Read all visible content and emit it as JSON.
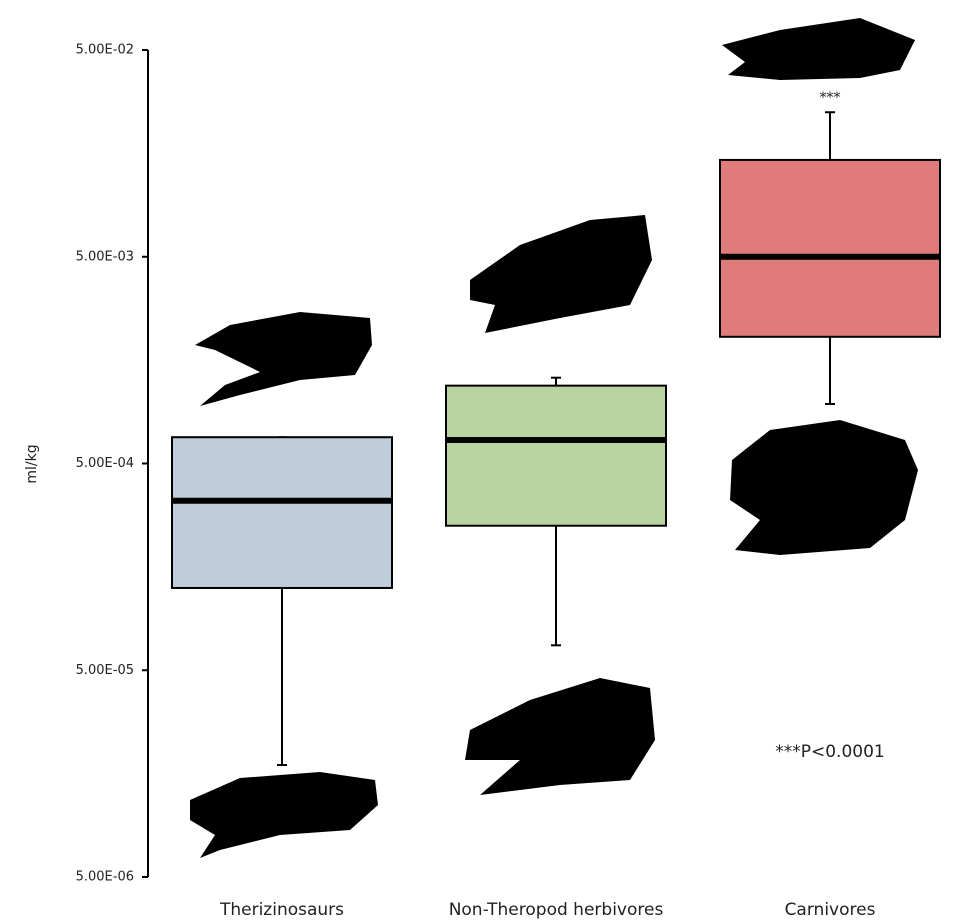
{
  "chart_data": {
    "type": "box",
    "y_label": "ml/kg",
    "log_scale": true,
    "categories": [
      "Therizinosaurs",
      "Non-Theropod herbivores",
      "Carnivores"
    ],
    "colors": [
      "#bfcddb",
      "#b9d4a0",
      "#e07b7b"
    ],
    "boxes": [
      {
        "min": 1.74e-05,
        "q1": 0.000125,
        "median": 0.00033,
        "q3": 0.00067,
        "max": 0.00067
      },
      {
        "min": 6.6e-05,
        "q1": 0.00025,
        "median": 0.00065,
        "q3": 0.00119,
        "max": 0.0013
      },
      {
        "min": 0.00097,
        "q1": 0.00205,
        "median": 0.005,
        "q3": 0.0147,
        "max": 0.025
      }
    ],
    "ylim": [
      5e-06,
      0.05
    ],
    "yticks": [
      {
        "value": 0.05,
        "label": "5.00E-02"
      },
      {
        "value": 0.005,
        "label": "5.00E-03"
      },
      {
        "value": 0.0005,
        "label": "5.00E-04"
      },
      {
        "value": 5e-05,
        "label": "5.00E-05"
      },
      {
        "value": 5e-06,
        "label": "5.00E-06"
      }
    ],
    "annotations": [
      "***",
      "***P<0.0001"
    ]
  }
}
